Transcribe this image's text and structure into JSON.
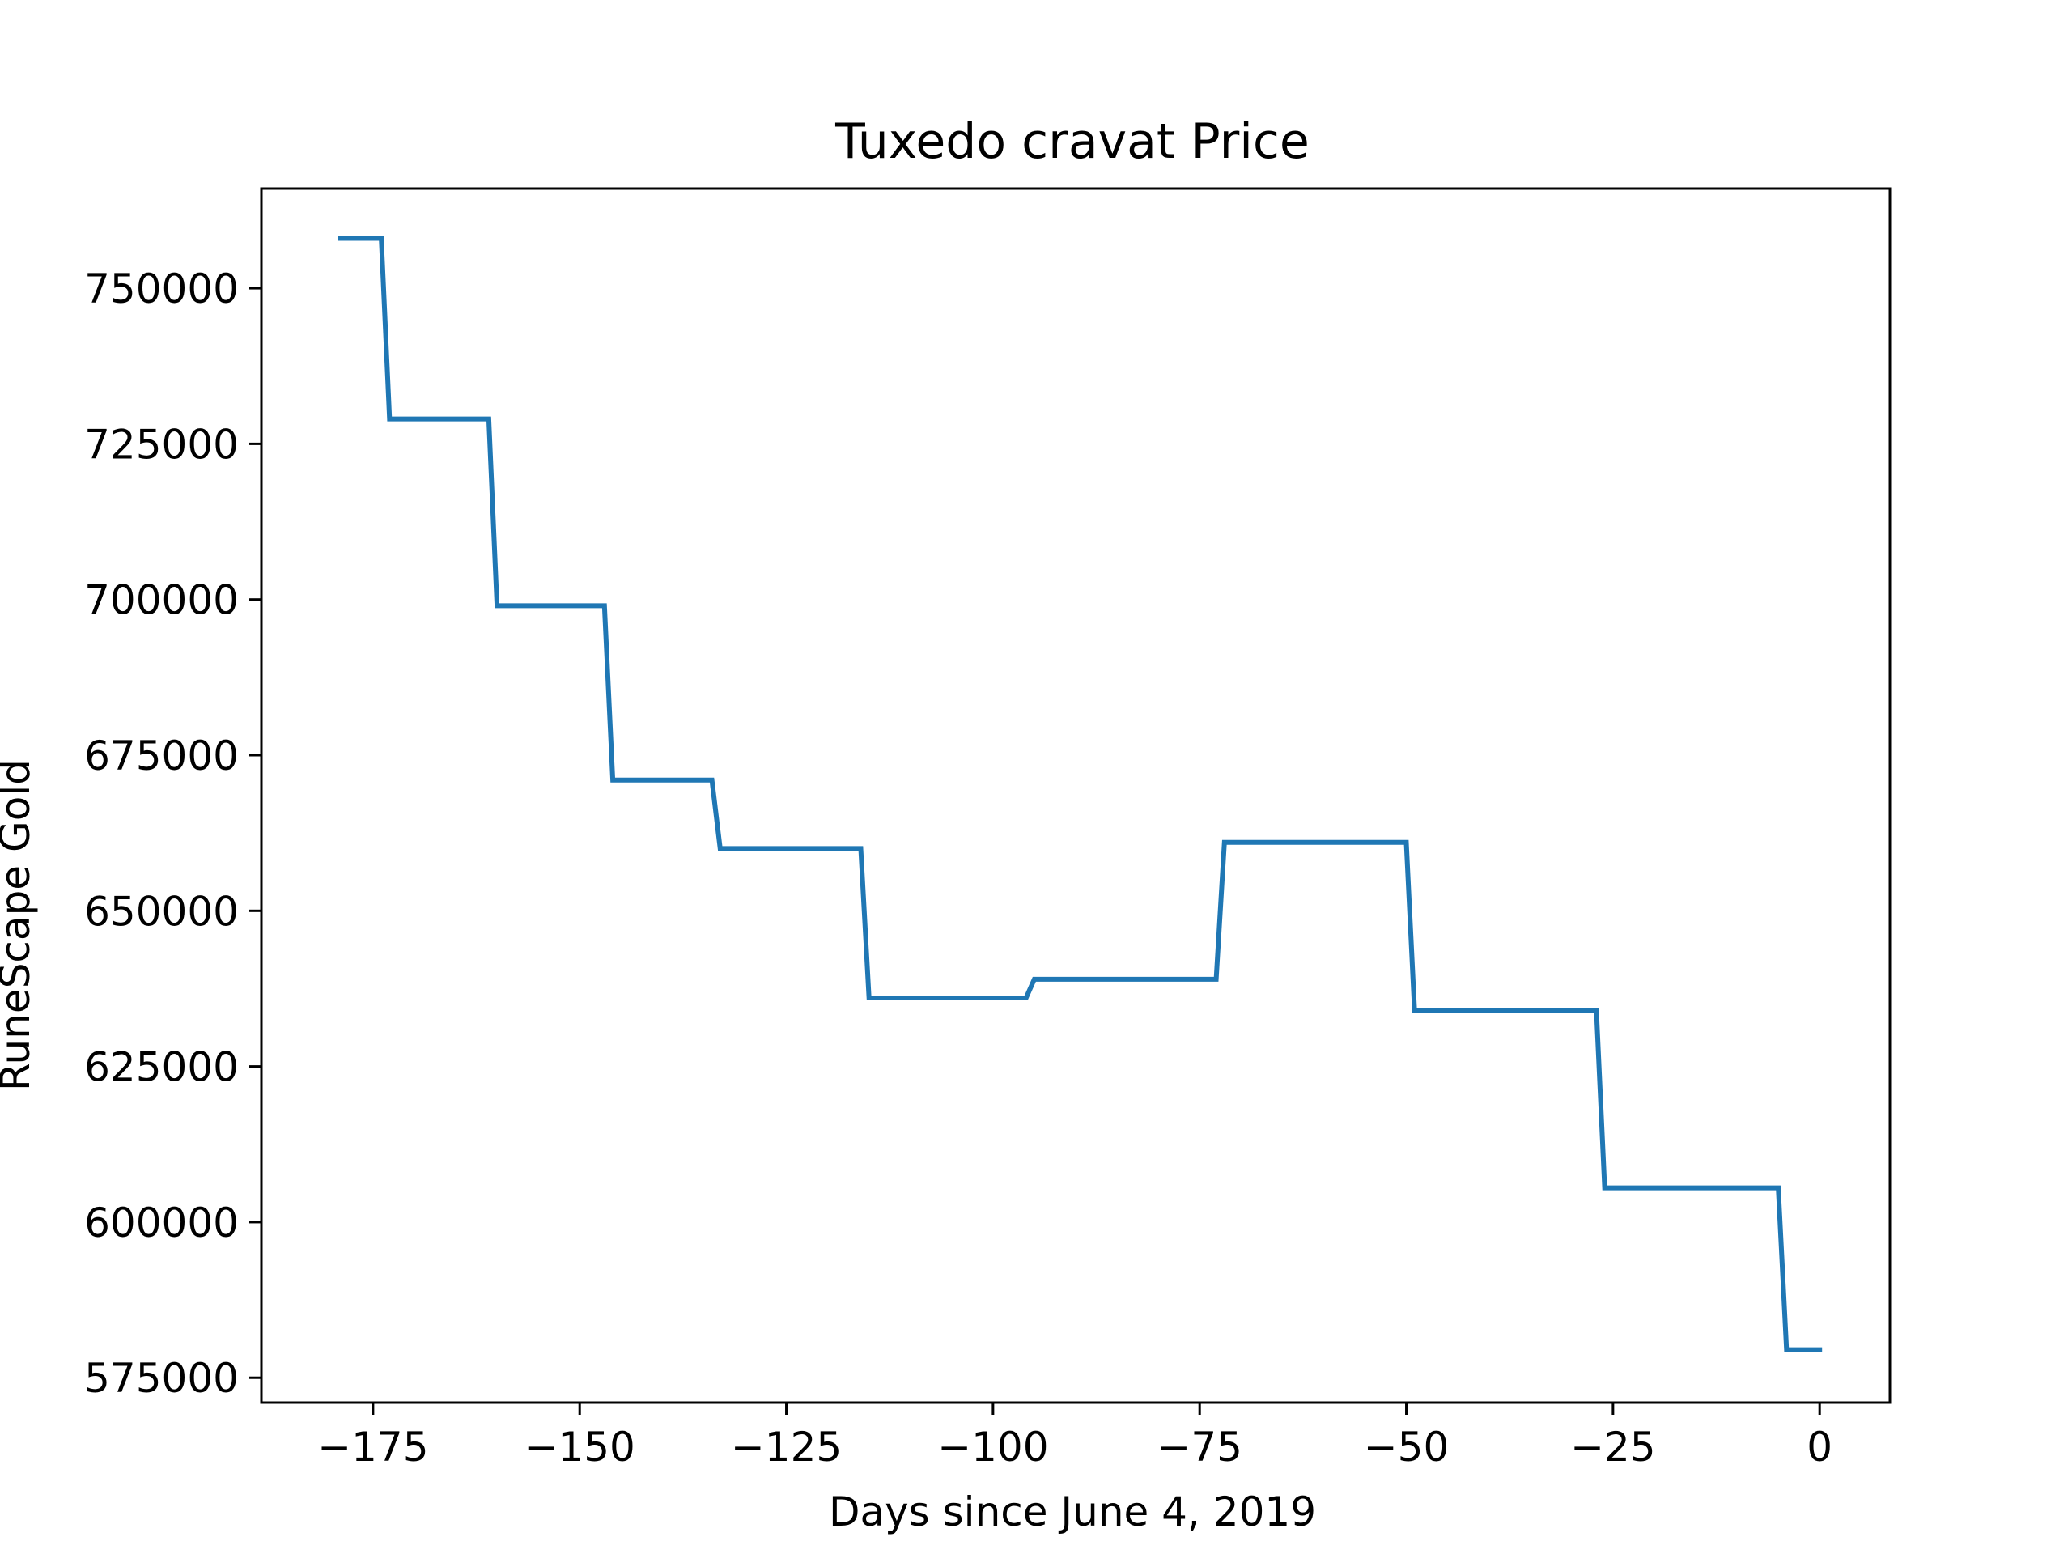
{
  "chart_data": {
    "type": "line",
    "title": "Tuxedo cravat Price",
    "xlabel": "Days since June 4, 2019",
    "ylabel": "RuneScape Gold",
    "xlim": [
      -188.5,
      8.5
    ],
    "ylim": [
      571000,
      766000
    ],
    "xticks": [
      -175,
      -150,
      -125,
      -100,
      -75,
      -50,
      -25,
      0
    ],
    "xtick_labels": [
      "−175",
      "−150",
      "−125",
      "−100",
      "−75",
      "−50",
      "−25",
      "0"
    ],
    "yticks": [
      575000,
      600000,
      625000,
      650000,
      675000,
      700000,
      725000,
      750000
    ],
    "ytick_labels": [
      "575000",
      "600000",
      "625000",
      "650000",
      "675000",
      "700000",
      "725000",
      "750000"
    ],
    "grid": false,
    "series": [
      {
        "color": "#1f77b4",
        "x": [
          -179,
          -174,
          -173,
          -161,
          -160,
          -147,
          -146,
          -134,
          -133,
          -116,
          -115,
          -96,
          -95,
          -73,
          -72,
          -50,
          -49,
          -27,
          -26,
          -5,
          -4,
          0
        ],
        "y": [
          758000,
          758000,
          729000,
          729000,
          699000,
          699000,
          671000,
          671000,
          660000,
          660000,
          636000,
          636000,
          639000,
          639000,
          661000,
          661000,
          634000,
          634000,
          605500,
          605500,
          579500,
          579500
        ]
      }
    ]
  }
}
